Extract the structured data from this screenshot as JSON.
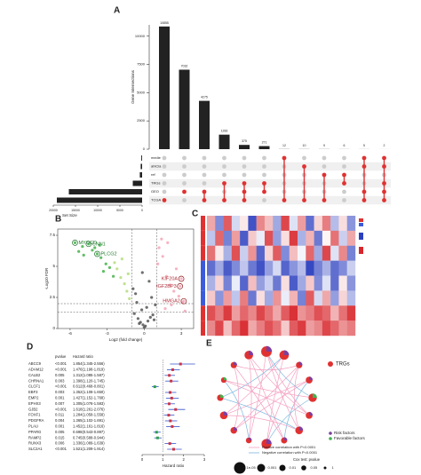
{
  "chart_data": [
    {
      "type": "upset",
      "panel": "A",
      "ylabel": "Gene Intersections",
      "values": [
        10855,
        7032,
        4275,
        1283,
        375,
        271,
        12,
        10,
        9,
        6,
        5,
        2
      ],
      "intersections": [
        [
          5
        ],
        [
          4
        ],
        [
          4,
          5
        ],
        [
          3,
          5
        ],
        [
          3,
          4,
          5
        ],
        [
          3,
          4
        ],
        [
          0,
          5
        ],
        [
          1,
          5
        ],
        [
          2,
          5
        ],
        [
          2,
          3
        ],
        [
          0,
          1,
          4,
          5
        ],
        [
          0,
          1,
          3,
          4,
          5
        ]
      ],
      "color": "#222222",
      "dot_color": "#e03131",
      "empty_dot_color": "#cccccc",
      "ylim": [
        0,
        11000
      ],
      "yticks": [
        0,
        2500,
        5000,
        7500,
        10000
      ],
      "sets": [
        "medie",
        "ahiCia",
        "ref",
        "TRGs",
        "GEO",
        "TCGA"
      ],
      "set_sizes": [
        180,
        320,
        520,
        2100,
        16500,
        19200
      ],
      "set_xlim": [
        0,
        20000
      ],
      "set_xticks": [
        0,
        5000,
        10000,
        15000,
        20000
      ],
      "set_xlabel": "Set Size"
    },
    {
      "type": "scatter",
      "panel": "B",
      "xlabel": "Log2 (fold change)",
      "ylabel": "-Log10 FDR",
      "xlim": [
        -7,
        4
      ],
      "xticks": [
        -6,
        -3,
        0,
        3
      ],
      "ylim": [
        0,
        8
      ],
      "yticks": [
        0,
        2.5,
        5,
        7.5
      ],
      "vlines": [
        -1,
        1
      ],
      "hlines": [
        1.3,
        2
      ],
      "series": [
        {
          "color": "#555555",
          "x": [
            -0.8,
            -0.5,
            -0.3,
            -0.1,
            0.1,
            0.3,
            0.5,
            0.7,
            -0.6,
            -0.2,
            0.2,
            0.6,
            -0.9,
            0.9,
            -0.4,
            0.4,
            0,
            -0.7,
            0.8,
            -0.15
          ],
          "values": [
            1.2,
            0.8,
            0.5,
            0.3,
            0.2,
            0.6,
            0.9,
            1.1,
            2.1,
            1.5,
            1.7,
            2.5,
            3.2,
            1.9,
            0.4,
            3.8,
            0.1,
            2.8,
            0.7,
            4.5
          ]
        },
        {
          "color": "#44b34a",
          "x": [
            -5.6,
            -5.0,
            -4.5,
            -4.2,
            -3.8,
            -3.5,
            -3.1,
            -2.8,
            -4.9,
            -4.0,
            -3.3,
            -2.5,
            -5.3,
            -3.6
          ],
          "values": [
            6.9,
            6.6,
            6.8,
            6.3,
            6.0,
            5.7,
            5.2,
            4.9,
            5.9,
            6.5,
            4.6,
            4.2,
            6.2,
            6.7
          ]
        },
        {
          "color": "#b5dd7e",
          "x": [
            -2.2,
            -1.9,
            -1.6,
            -1.4,
            -1.2,
            -2.4,
            -1.8,
            -1.3
          ],
          "values": [
            4.8,
            4.1,
            3.6,
            3.0,
            2.4,
            5.3,
            5.6,
            4.4
          ]
        },
        {
          "color": "#f4a6b8",
          "x": [
            1.2,
            1.5,
            1.8,
            2.1,
            2.4,
            2.8,
            3.1,
            1.4,
            1.9,
            2.6,
            1.1,
            1.7,
            2.2,
            3.3,
            3.0,
            2.9,
            3.2
          ],
          "values": [
            6.5,
            5.8,
            4.2,
            3.5,
            3.0,
            2.6,
            2.1,
            7.2,
            6.9,
            4.8,
            5.2,
            1.6,
            1.9,
            1.4,
            4.0,
            3.4,
            2.2
          ]
        }
      ],
      "annotations": [
        {
          "text": "MYOCD",
          "point": [
            1,
            0
          ]
        },
        {
          "text": "CNN1",
          "point": [
            1,
            2
          ]
        },
        {
          "text": "PLCG2",
          "point": [
            1,
            4
          ]
        },
        {
          "text": "KIF20A",
          "point": [
            3,
            14
          ]
        },
        {
          "text": "IGF2BP3",
          "point": [
            3,
            15
          ]
        },
        {
          "text": "HMGA2",
          "point": [
            3,
            16
          ]
        }
      ]
    },
    {
      "type": "heatmap",
      "panel": "C",
      "colors": [
        "#2b3fbf",
        "#ffffff",
        "#d7262b"
      ],
      "zlim": [
        -2,
        2
      ],
      "row_groups": [
        0,
        0,
        0,
        1,
        1,
        1,
        0,
        0
      ],
      "group_colors": [
        "#e03131",
        "#3b5bdb"
      ],
      "values": [
        [
          0.8,
          -1.2,
          1.5,
          -0.4,
          0.2,
          -1.8,
          1.1,
          0.6,
          -0.9,
          1.7,
          -0.3,
          0.9,
          -1.5,
          0.4,
          1.2,
          -0.7,
          0.3,
          -1.1
        ],
        [
          -0.6,
          1.4,
          -1.3,
          0.9,
          -1.7,
          0.5,
          -0.2,
          1.6,
          -1.0,
          0.3,
          1.8,
          -0.8,
          0.7,
          -1.4,
          0.1,
          1.3,
          -0.5,
          0.8
        ],
        [
          1.3,
          0.2,
          -0.8,
          1.6,
          -0.5,
          1.0,
          -1.6,
          0.4,
          1.5,
          -1.2,
          0.6,
          -0.1,
          1.4,
          -0.9,
          1.7,
          -0.3,
          1.1,
          -1.3
        ],
        [
          -1.5,
          -0.9,
          -1.7,
          -1.2,
          -0.6,
          -1.4,
          -1.8,
          -1.0,
          -0.4,
          -1.6,
          -1.1,
          -0.7,
          -1.9,
          -1.3,
          -0.8,
          -1.5,
          -1.2,
          -0.5
        ],
        [
          -0.8,
          0.4,
          -1.3,
          -0.2,
          -1.6,
          0.6,
          -1.0,
          -0.5,
          -1.4,
          0.3,
          -1.7,
          -0.9,
          0.5,
          -1.2,
          -0.3,
          -1.5,
          0.2,
          -1.1
        ],
        [
          0.5,
          -1.1,
          0.9,
          -0.6,
          1.2,
          -1.4,
          0.3,
          -0.9,
          1.0,
          -0.2,
          0.7,
          -1.3,
          1.5,
          -0.4,
          0.8,
          -1.0,
          0.4,
          -0.7
        ],
        [
          1.6,
          1.2,
          1.8,
          0.9,
          1.4,
          1.1,
          1.7,
          1.3,
          0.8,
          1.5,
          1.9,
          1.0,
          1.2,
          1.6,
          1.4,
          0.7,
          1.3,
          1.8
        ],
        [
          1.1,
          1.7,
          0.6,
          1.4,
          1.9,
          0.8,
          1.2,
          1.6,
          1.3,
          0.5,
          1.5,
          1.8,
          0.9,
          1.1,
          1.7,
          1.4,
          1.0,
          1.2
        ]
      ]
    },
    {
      "type": "forest",
      "panel": "D",
      "column_headers": [
        "pvalue",
        "Hazard ratio"
      ],
      "xlabel": "Hazard ratio",
      "xlim": [
        0,
        3
      ],
      "xticks": [
        0,
        1,
        2,
        3
      ],
      "ref": 1,
      "risk_color": "#cc3344",
      "favorable_color": "#2e9e4f",
      "ci_color": "#3355cc",
      "categories": [
        "ABCC9",
        "ADAM12",
        "CALB2",
        "CHRNA1",
        "CLCF1",
        "EBF3",
        "EMP2",
        "EPHX3",
        "GJB2",
        "FOXF1",
        "PDGFRA",
        "PLAU",
        "PPARG",
        "RAMP2",
        "RUNX3",
        "SLC2A1"
      ],
      "pvalues": [
        "<0.001",
        "<0.001",
        "0.005",
        "0.003",
        "<0.001",
        "0.003",
        "0.001",
        "0.007",
        "<0.001",
        "0.011",
        "0.004",
        "0.001",
        "0.005",
        "0.015",
        "0.006",
        "<0.001"
      ],
      "values": [
        1.854,
        1.476,
        1.312,
        1.398,
        0.612,
        1.352,
        1.427,
        1.305,
        1.618,
        1.284,
        1.365,
        1.452,
        0.698,
        0.745,
        1.336,
        1.521
      ],
      "lower": [
        1.345,
        1.198,
        1.085,
        1.12,
        0.468,
        1.108,
        1.152,
        1.076,
        1.261,
        1.058,
        1.102,
        1.161,
        0.543,
        0.588,
        1.089,
        1.209
      ],
      "upper": [
        2.556,
        1.819,
        1.587,
        1.745,
        0.801,
        1.65,
        1.768,
        1.583,
        2.076,
        1.558,
        1.691,
        1.816,
        0.897,
        0.944,
        1.639,
        1.914
      ],
      "value_labels": [
        "1.854(1.345-2.556)",
        "1.476(1.198-1.819)",
        "1.312(1.085-1.587)",
        "1.398(1.120-1.745)",
        "0.612(0.468-0.801)",
        "1.352(1.108-1.650)",
        "1.427(1.152-1.768)",
        "1.305(1.076-1.583)",
        "1.618(1.261-2.076)",
        "1.284(1.058-1.558)",
        "1.365(1.102-1.691)",
        "1.452(1.161-1.816)",
        "0.698(0.543-0.897)",
        "0.745(0.588-0.944)",
        "1.336(1.089-1.639)",
        "1.521(1.209-1.914)"
      ]
    },
    {
      "type": "network",
      "panel": "E",
      "node_color": "#e03131",
      "type_colors": [
        "#7b3fa0",
        "#3fb34f"
      ],
      "edge_colors": [
        "#f4a0c0",
        "#7ab8e0"
      ],
      "node_pvalues": [
        2e-05,
        0.0001,
        0.005,
        0.003,
        0.0004,
        0.003,
        0.001,
        0.007,
        5e-05,
        0.011,
        0.004,
        0.001,
        0.005,
        0.015,
        0.006,
        0.0003
      ],
      "node_types": [
        0,
        0,
        0,
        0,
        1,
        0,
        0,
        0,
        0,
        0,
        0,
        0,
        1,
        1,
        0,
        0
      ],
      "edges": [
        [
          0,
          5,
          1
        ],
        [
          0,
          9,
          1
        ],
        [
          1,
          8,
          1
        ],
        [
          1,
          12,
          -1
        ],
        [
          2,
          10,
          1
        ],
        [
          2,
          14,
          1
        ],
        [
          3,
          11,
          1
        ],
        [
          3,
          7,
          -1
        ],
        [
          4,
          13,
          1
        ],
        [
          4,
          8,
          -1
        ],
        [
          5,
          15,
          1
        ],
        [
          6,
          0,
          1
        ],
        [
          6,
          11,
          1
        ],
        [
          7,
          15,
          1
        ],
        [
          8,
          2,
          1
        ],
        [
          9,
          13,
          -1
        ],
        [
          10,
          3,
          1
        ],
        [
          11,
          1,
          1
        ],
        [
          12,
          6,
          -1
        ],
        [
          13,
          5,
          1
        ],
        [
          14,
          7,
          1
        ],
        [
          15,
          9,
          1
        ],
        [
          2,
          6,
          1
        ],
        [
          10,
          14,
          1
        ],
        [
          4,
          0,
          -1
        ]
      ],
      "legend": {
        "trgs": "TRGs",
        "risk": "Risk factors",
        "favorable": "Favorable factors",
        "positive": "Positive correlation with P<0.0001",
        "negative": "Negative correlation with P<0.0001",
        "size_title": "Cox test: pvalue",
        "size_ticks": [
          {
            "value": 1e-05,
            "label": "1e-05"
          },
          0.001,
          0.01,
          0.05,
          1
        ]
      }
    }
  ]
}
